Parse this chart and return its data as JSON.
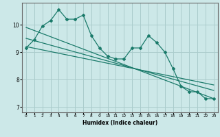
{
  "title": "",
  "xlabel": "Humidex (Indice chaleur)",
  "ylabel": "",
  "bg_color": "#cce8e8",
  "grid_color": "#aacccc",
  "line_color": "#1a7a6a",
  "xlim": [
    -0.5,
    23.5
  ],
  "ylim": [
    6.8,
    10.8
  ],
  "yticks": [
    7,
    8,
    9,
    10
  ],
  "xticks": [
    0,
    1,
    2,
    3,
    4,
    5,
    6,
    7,
    8,
    9,
    10,
    11,
    12,
    13,
    14,
    15,
    16,
    17,
    18,
    19,
    20,
    21,
    22,
    23
  ],
  "main_x": [
    0,
    1,
    2,
    3,
    4,
    5,
    6,
    7,
    8,
    9,
    10,
    11,
    12,
    13,
    14,
    15,
    16,
    17,
    18,
    19,
    20,
    21,
    22,
    23
  ],
  "main_y": [
    9.15,
    9.45,
    9.95,
    10.15,
    10.55,
    10.2,
    10.2,
    10.35,
    9.6,
    9.15,
    8.85,
    8.75,
    8.75,
    9.15,
    9.15,
    9.6,
    9.35,
    9.0,
    8.4,
    7.75,
    7.55,
    7.55,
    7.3,
    7.3
  ],
  "trend1_x": [
    0,
    23
  ],
  "trend1_y": [
    9.9,
    7.3
  ],
  "trend2_x": [
    0,
    23
  ],
  "trend2_y": [
    9.5,
    7.6
  ],
  "trend3_x": [
    0,
    23
  ],
  "trend3_y": [
    9.2,
    7.8
  ]
}
